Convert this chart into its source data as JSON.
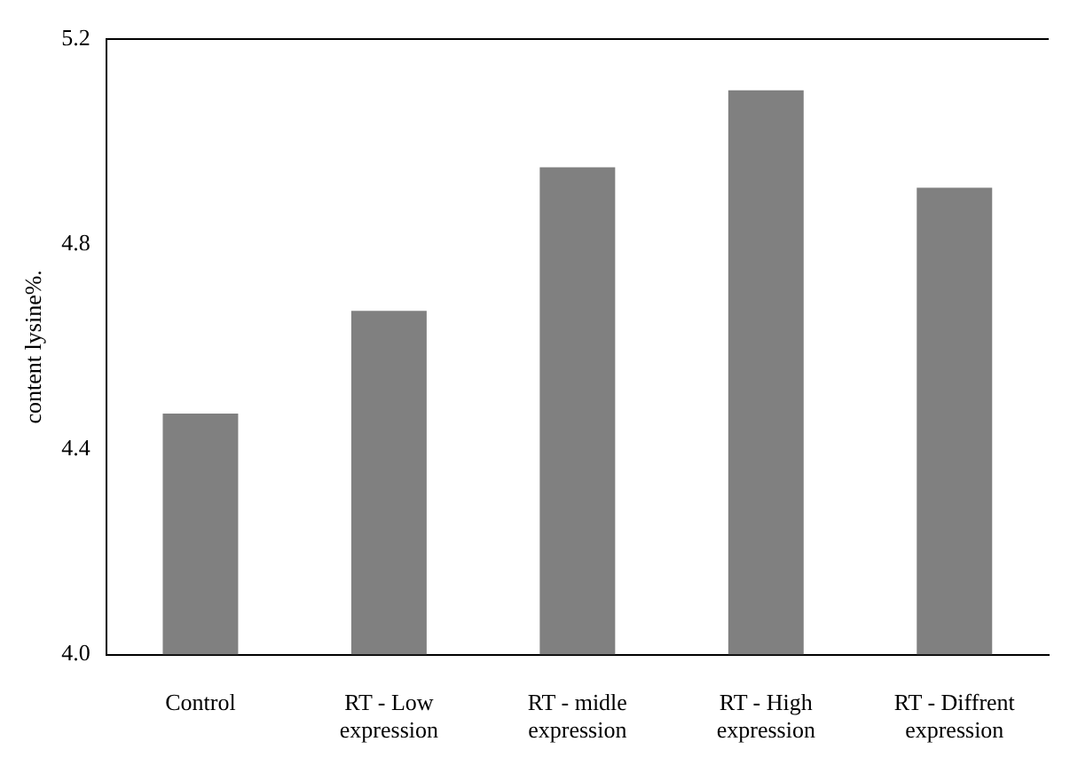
{
  "chart_data": {
    "type": "bar",
    "ylabel": "content lysine%.",
    "categories": [
      "Control",
      "RT - Low expression",
      "RT - midle expression",
      "RT - High expression",
      "RT - Diffrent expression"
    ],
    "values": [
      4.47,
      4.67,
      4.95,
      5.1,
      4.91
    ],
    "color": "#808080",
    "ylim": [
      4.0,
      5.2
    ],
    "yticks": [
      {
        "value": 4.0,
        "label": "4.0"
      },
      {
        "value": 4.4,
        "label": "4.4"
      },
      {
        "value": 4.8,
        "label": "4.8"
      },
      {
        "value": 5.2,
        "label": "5.2"
      }
    ],
    "grid": false,
    "legend": false
  }
}
